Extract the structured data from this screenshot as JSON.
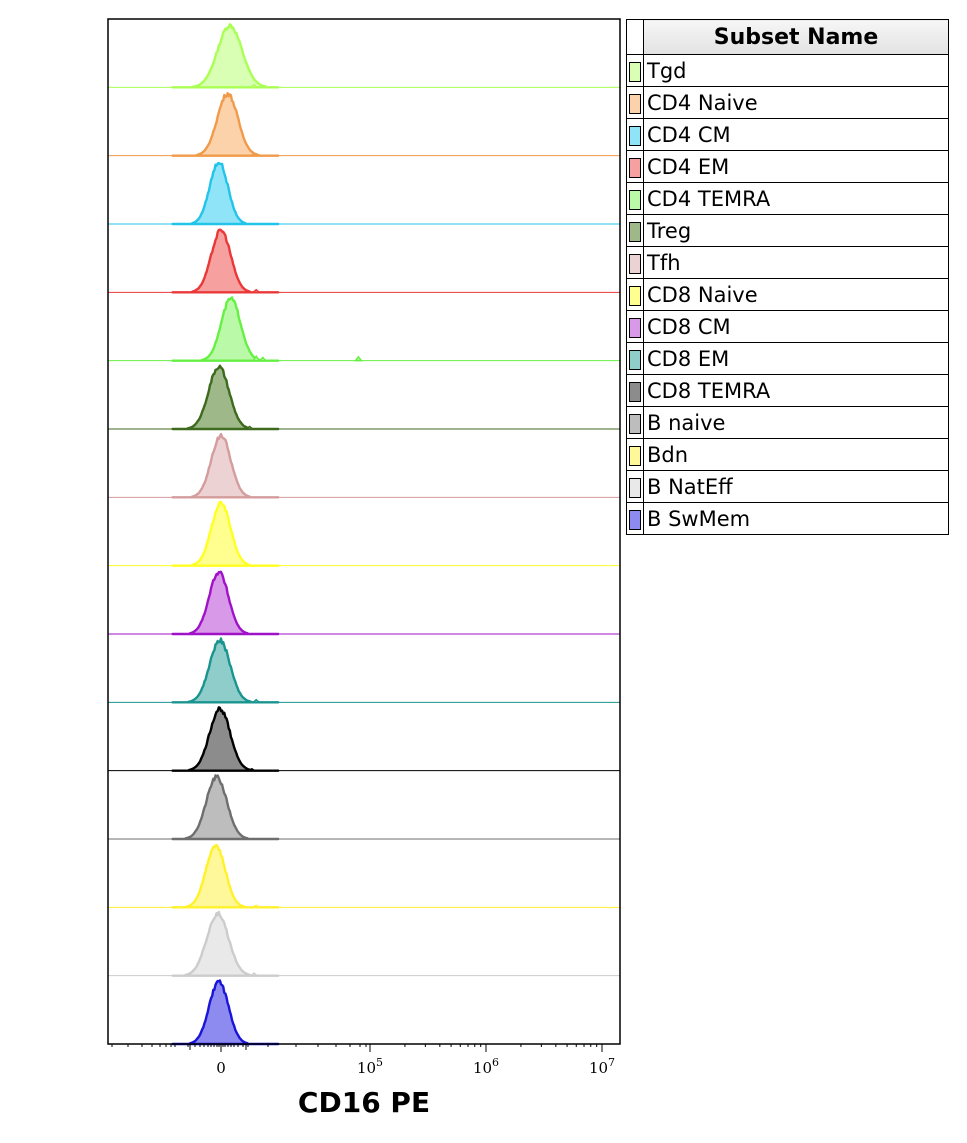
{
  "chart_data": {
    "type": "histogram-overlay",
    "xlabel": "CD16 PE",
    "x_ticks": [
      {
        "label": "0",
        "value": 0
      },
      {
        "label": "10",
        "exp": "5",
        "value": 100000
      },
      {
        "label": "10",
        "exp": "6",
        "value": 1000000
      },
      {
        "label": "10",
        "exp": "7",
        "value": 10000000
      }
    ],
    "x_scale": "biexponential",
    "legend_title": "Subset Name",
    "series": [
      {
        "name": "Tgd",
        "color": "#aaff55",
        "fill": "#d8ffb4",
        "peak": 0.4,
        "width": 1.0,
        "extras": [
          [
            1.5,
            0.04
          ],
          [
            1.9,
            0.02
          ]
        ]
      },
      {
        "name": "CD4 Naive",
        "color": "#f09a4a",
        "fill": "#fcd2ab",
        "peak": 0.3,
        "width": 0.85,
        "extras": [
          [
            1.5,
            0.03
          ]
        ]
      },
      {
        "name": "CD4 CM",
        "color": "#22c4ea",
        "fill": "#8fe4f8",
        "peak": -0.1,
        "width": 0.75,
        "extras": []
      },
      {
        "name": "CD4 EM",
        "color": "#ea3838",
        "fill": "#f7a0a0",
        "peak": 0.0,
        "width": 0.8,
        "extras": [
          [
            1.6,
            0.04
          ]
        ]
      },
      {
        "name": "CD4 TEMRA",
        "color": "#66f044",
        "fill": "#baf9a8",
        "peak": 0.45,
        "width": 0.8,
        "extras": [
          [
            1.6,
            0.07
          ],
          [
            1.9,
            0.05
          ],
          [
            5.2,
            0.06
          ]
        ]
      },
      {
        "name": "Treg",
        "color": "#3d6a1c",
        "fill": "#9fb88a",
        "peak": -0.1,
        "width": 0.85,
        "extras": [
          [
            1.3,
            0.04
          ]
        ]
      },
      {
        "name": "Tfh",
        "color": "#d49c9c",
        "fill": "#ecd2d2",
        "peak": 0.0,
        "width": 0.8,
        "extras": []
      },
      {
        "name": "CD8 Naive",
        "color": "#ffff22",
        "fill": "#ffff90",
        "peak": 0.0,
        "width": 0.8,
        "extras": []
      },
      {
        "name": "CD8 CM",
        "color": "#a012c8",
        "fill": "#d89ae8",
        "peak": -0.1,
        "width": 0.8,
        "extras": []
      },
      {
        "name": "CD8 EM",
        "color": "#1a948f",
        "fill": "#8fcdca",
        "peak": -0.05,
        "width": 0.85,
        "extras": [
          [
            1.6,
            0.04
          ]
        ]
      },
      {
        "name": "CD8 TEMRA",
        "color": "#000000",
        "fill": "#8c8c8c",
        "peak": -0.05,
        "width": 0.85,
        "extras": [
          [
            1.4,
            0.03
          ]
        ]
      },
      {
        "name": "B naive",
        "color": "#6e6e6e",
        "fill": "#bdbdbd",
        "peak": -0.2,
        "width": 0.85,
        "extras": []
      },
      {
        "name": "Bdn",
        "color": "#fff12a",
        "fill": "#fff89b",
        "peak": -0.25,
        "width": 0.8,
        "extras": [
          [
            1.6,
            0.03
          ]
        ]
      },
      {
        "name": "B NatEff",
        "color": "#cccccc",
        "fill": "#e9e9e9",
        "peak": -0.15,
        "width": 0.9,
        "extras": [
          [
            1.5,
            0.04
          ]
        ]
      },
      {
        "name": "B SwMem",
        "color": "#1a14d8",
        "fill": "#8d8af0",
        "peak": -0.1,
        "width": 0.8,
        "extras": []
      }
    ]
  }
}
